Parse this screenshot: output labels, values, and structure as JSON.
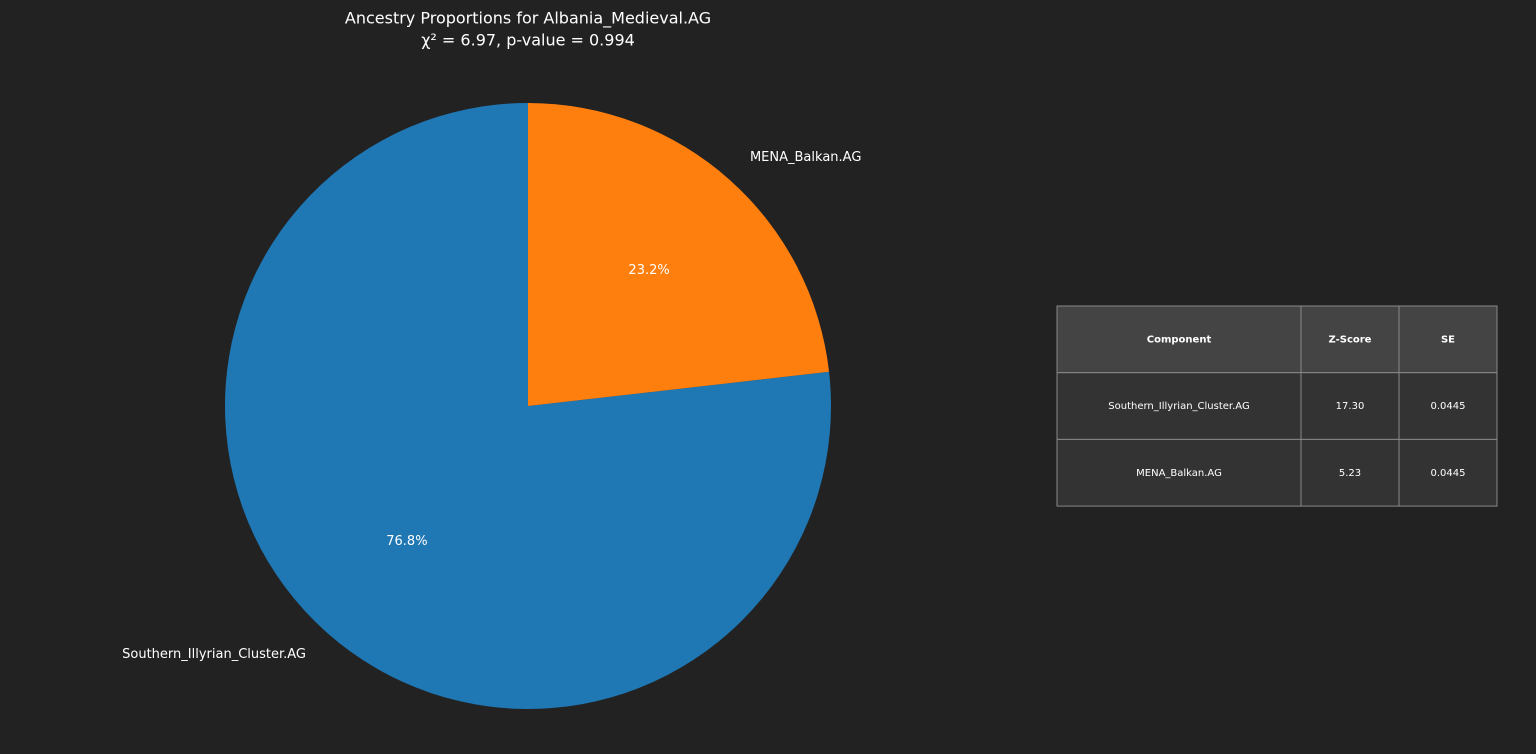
{
  "chart_data": {
    "type": "pie",
    "title": "Ancestry Proportions for Albania_Medieval.AG",
    "subtitle": "χ² = 6.97, p-value = 0.994",
    "categories": [
      "Southern_Illyrian_Cluster.AG",
      "MENA_Balkan.AG"
    ],
    "values": [
      76.8,
      23.2
    ],
    "value_labels": [
      "76.8%",
      "23.2%"
    ],
    "colors": [
      "#1f77b4",
      "#ff7f0e"
    ],
    "start_angle": 90
  },
  "table": {
    "header": [
      "Component",
      "Z-Score",
      "SE"
    ],
    "rows": [
      [
        "Southern_Illyrian_Cluster.AG",
        "17.30",
        "0.0445"
      ],
      [
        "MENA_Balkan.AG",
        "5.23",
        "0.0445"
      ]
    ]
  }
}
